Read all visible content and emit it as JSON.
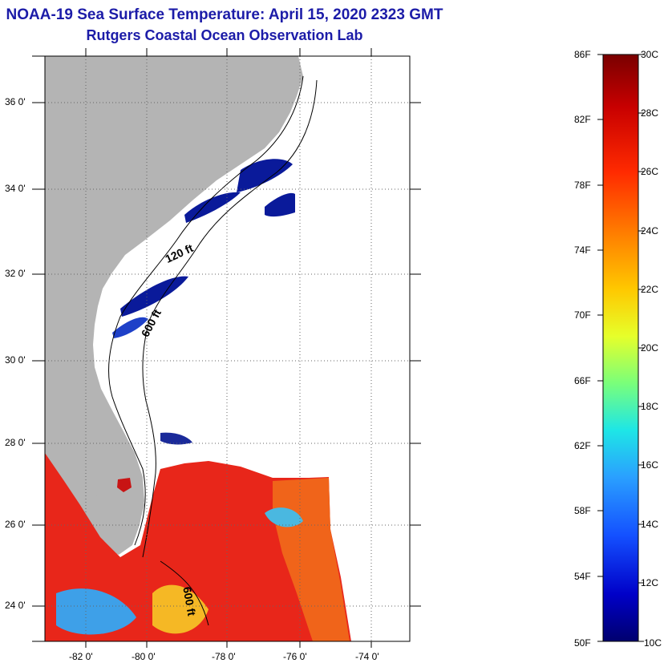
{
  "title": {
    "line1": "NOAA-19 Sea Surface Temperature:  April 15, 2020 2323 GMT",
    "line2": "Rutgers Coastal Ocean Observation Lab"
  },
  "map": {
    "lat_labels": [
      "36 0'",
      "34 0'",
      "32 0'",
      "30 0'",
      "28 0'",
      "26 0'",
      "24 0'"
    ],
    "lon_labels": [
      "-82 0'",
      "-80 0'",
      "-78 0'",
      "-76 0'",
      "-74 0'"
    ],
    "contour_labels": {
      "shelf": "120 ft",
      "slope": "600 ft",
      "deep": "600 ft"
    },
    "colors": {
      "land": "#b4b4b4",
      "no_data": "#ffffff",
      "cold": "#0a1a9a",
      "warm": "#e8261a",
      "warmer": "#f0641a",
      "cool": "#3ea0e8"
    }
  },
  "colorbar": {
    "fahrenheit_labels": [
      "86F",
      "82F",
      "78F",
      "74F",
      "70F",
      "66F",
      "62F",
      "58F",
      "54F",
      "50F"
    ],
    "celsius_labels": [
      "30C",
      "28C",
      "26C",
      "24C",
      "22C",
      "20C",
      "18C",
      "16C",
      "14C",
      "12C",
      "10C"
    ],
    "range_f": [
      50,
      86
    ],
    "range_c": [
      10,
      30
    ],
    "gradient": [
      "#7a0000",
      "#c80000",
      "#ff2a00",
      "#ff7a00",
      "#ffd000",
      "#e6ff2a",
      "#7aff7a",
      "#1ee6e6",
      "#2aa0ff",
      "#1450ff",
      "#0000c8",
      "#00006e"
    ]
  }
}
